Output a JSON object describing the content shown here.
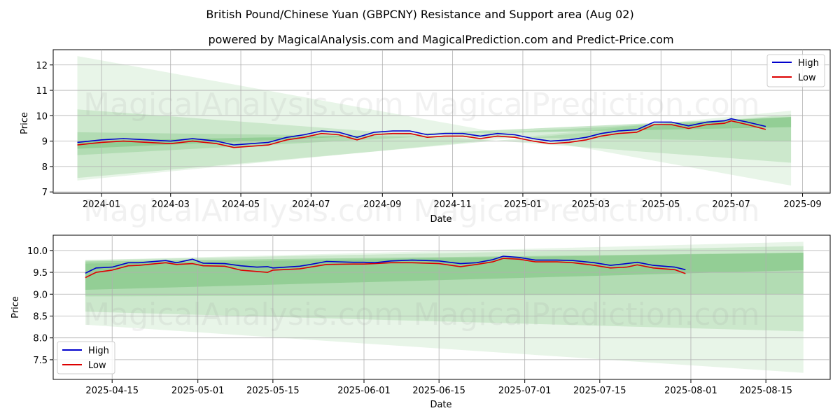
{
  "title": "British Pound/Chinese Yuan (GBPCNY) Resistance and Support area (Aug 02)",
  "subtitle": "powered by MagicalAnalysis.com and MagicalPrediction.com and Predict-Price.com",
  "watermark": [
    "MagicalAnalysis.com",
    "MagicalPrediction.com"
  ],
  "colors": {
    "high": "#0000cc",
    "low": "#dd0000",
    "band": "#4caf50"
  },
  "chart_data": [
    {
      "type": "line",
      "xlabel": "Date",
      "ylabel": "Price",
      "xlim": [
        "2023-11-20",
        "2025-09-25"
      ],
      "ylim": [
        6.95,
        12.6
      ],
      "xticks": [
        "2024-01",
        "2024-03",
        "2024-05",
        "2024-07",
        "2024-09",
        "2024-11",
        "2025-01",
        "2025-03",
        "2025-05",
        "2025-07",
        "2025-09"
      ],
      "yticks": [
        7,
        8,
        9,
        10,
        11,
        12
      ],
      "legend": [
        "High",
        "Low"
      ],
      "legend_position": "top-right",
      "grid": true,
      "bands": [
        {
          "start": "2023-12-11",
          "end": "2025-08-22",
          "from": [
            12.35,
            7.45
          ],
          "to": [
            7.25,
            10.2
          ],
          "alpha": 0.13
        },
        {
          "start": "2023-12-11",
          "end": "2025-08-22",
          "from": [
            10.25,
            7.55
          ],
          "to": [
            8.15,
            10.05
          ],
          "alpha": 0.18
        },
        {
          "start": "2023-12-11",
          "end": "2025-08-22",
          "from": [
            9.35,
            8.45
          ],
          "to": [
            9.0,
            9.95
          ],
          "alpha": 0.2
        },
        {
          "start": "2023-12-11",
          "end": "2025-08-22",
          "from": [
            9.0,
            8.7
          ],
          "to": [
            9.55,
            9.95
          ],
          "alpha": 0.3
        }
      ],
      "series": [
        {
          "name": "High",
          "x": [
            "2023-12-11",
            "2024-01-01",
            "2024-01-20",
            "2024-02-10",
            "2024-03-01",
            "2024-03-20",
            "2024-04-10",
            "2024-04-25",
            "2024-05-10",
            "2024-05-25",
            "2024-06-10",
            "2024-06-25",
            "2024-07-10",
            "2024-07-25",
            "2024-08-10",
            "2024-08-25",
            "2024-09-10",
            "2024-09-25",
            "2024-10-10",
            "2024-10-25",
            "2024-11-10",
            "2024-11-25",
            "2024-12-10",
            "2024-12-25",
            "2025-01-10",
            "2025-01-25",
            "2025-02-10",
            "2025-02-25",
            "2025-03-10",
            "2025-03-25",
            "2025-04-10",
            "2025-04-25",
            "2025-05-10",
            "2025-05-25",
            "2025-06-10",
            "2025-06-25",
            "2025-07-01",
            "2025-07-15",
            "2025-07-31"
          ],
          "values": [
            8.95,
            9.05,
            9.1,
            9.05,
            9.0,
            9.1,
            9.0,
            8.85,
            8.9,
            8.95,
            9.15,
            9.25,
            9.4,
            9.35,
            9.15,
            9.35,
            9.4,
            9.4,
            9.25,
            9.3,
            9.3,
            9.2,
            9.3,
            9.25,
            9.1,
            9.0,
            9.05,
            9.15,
            9.3,
            9.4,
            9.45,
            9.75,
            9.75,
            9.6,
            9.75,
            9.8,
            9.88,
            9.75,
            9.58
          ]
        },
        {
          "name": "Low",
          "x": [
            "2023-12-11",
            "2024-01-01",
            "2024-01-20",
            "2024-02-10",
            "2024-03-01",
            "2024-03-20",
            "2024-04-10",
            "2024-04-25",
            "2024-05-10",
            "2024-05-25",
            "2024-06-10",
            "2024-06-25",
            "2024-07-10",
            "2024-07-25",
            "2024-08-10",
            "2024-08-25",
            "2024-09-10",
            "2024-09-25",
            "2024-10-10",
            "2024-10-25",
            "2024-11-10",
            "2024-11-25",
            "2024-12-10",
            "2024-12-25",
            "2025-01-10",
            "2025-01-25",
            "2025-02-10",
            "2025-02-25",
            "2025-03-10",
            "2025-03-25",
            "2025-04-10",
            "2025-04-25",
            "2025-05-10",
            "2025-05-25",
            "2025-06-10",
            "2025-06-25",
            "2025-07-01",
            "2025-07-15",
            "2025-07-31"
          ],
          "values": [
            8.85,
            8.95,
            9.0,
            8.95,
            8.9,
            9.0,
            8.9,
            8.75,
            8.8,
            8.85,
            9.05,
            9.15,
            9.3,
            9.25,
            9.05,
            9.25,
            9.3,
            9.3,
            9.15,
            9.2,
            9.2,
            9.1,
            9.2,
            9.15,
            9.0,
            8.9,
            8.95,
            9.05,
            9.2,
            9.3,
            9.35,
            9.65,
            9.65,
            9.5,
            9.65,
            9.7,
            9.8,
            9.65,
            9.46
          ]
        }
      ]
    },
    {
      "type": "line",
      "xlabel": "Date",
      "ylabel": "Price",
      "xlim": [
        "2025-04-04",
        "2025-08-27"
      ],
      "ylim": [
        7.05,
        10.35
      ],
      "xticks": [
        "2025-04-15",
        "2025-05-01",
        "2025-05-15",
        "2025-06-01",
        "2025-06-15",
        "2025-07-01",
        "2025-07-15",
        "2025-08-01",
        "2025-08-15"
      ],
      "yticks": [
        7.5,
        8.0,
        8.5,
        9.0,
        9.5,
        10.0
      ],
      "legend": [
        "High",
        "Low"
      ],
      "legend_position": "bottom-left",
      "grid": true,
      "bands": [
        {
          "start": "2025-04-10",
          "end": "2025-08-22",
          "from": [
            9.78,
            8.3
          ],
          "to": [
            10.2,
            7.2
          ],
          "alpha": 0.13
        },
        {
          "start": "2025-04-10",
          "end": "2025-08-22",
          "from": [
            9.78,
            8.6
          ],
          "to": [
            10.1,
            8.15
          ],
          "alpha": 0.18
        },
        {
          "start": "2025-04-10",
          "end": "2025-08-22",
          "from": [
            9.7,
            8.95
          ],
          "to": [
            9.95,
            9.0
          ],
          "alpha": 0.2
        },
        {
          "start": "2025-04-10",
          "end": "2025-08-22",
          "from": [
            9.75,
            9.1
          ],
          "to": [
            9.95,
            9.55
          ],
          "alpha": 0.3
        }
      ],
      "series": [
        {
          "name": "High",
          "x": [
            "2025-04-10",
            "2025-04-12",
            "2025-04-15",
            "2025-04-18",
            "2025-04-20",
            "2025-04-25",
            "2025-04-27",
            "2025-04-30",
            "2025-05-02",
            "2025-05-06",
            "2025-05-09",
            "2025-05-12",
            "2025-05-14",
            "2025-05-15",
            "2025-05-20",
            "2025-05-22",
            "2025-05-25",
            "2025-05-30",
            "2025-06-01",
            "2025-06-03",
            "2025-06-06",
            "2025-06-10",
            "2025-06-15",
            "2025-06-19",
            "2025-06-22",
            "2025-06-25",
            "2025-06-27",
            "2025-06-30",
            "2025-07-03",
            "2025-07-07",
            "2025-07-10",
            "2025-07-14",
            "2025-07-16",
            "2025-07-17",
            "2025-07-20",
            "2025-07-22",
            "2025-07-25",
            "2025-07-29",
            "2025-07-31"
          ],
          "values": [
            9.48,
            9.6,
            9.62,
            9.72,
            9.72,
            9.77,
            9.72,
            9.8,
            9.71,
            9.7,
            9.65,
            9.62,
            9.63,
            9.6,
            9.64,
            9.68,
            9.75,
            9.73,
            9.73,
            9.72,
            9.76,
            9.78,
            9.76,
            9.7,
            9.72,
            9.79,
            9.87,
            9.84,
            9.78,
            9.78,
            9.77,
            9.72,
            9.68,
            9.66,
            9.7,
            9.73,
            9.66,
            9.62,
            9.56
          ]
        },
        {
          "name": "Low",
          "x": [
            "2025-04-10",
            "2025-04-12",
            "2025-04-15",
            "2025-04-18",
            "2025-04-20",
            "2025-04-25",
            "2025-04-27",
            "2025-04-30",
            "2025-05-02",
            "2025-05-06",
            "2025-05-09",
            "2025-05-12",
            "2025-05-14",
            "2025-05-15",
            "2025-05-20",
            "2025-05-22",
            "2025-05-25",
            "2025-05-30",
            "2025-06-01",
            "2025-06-03",
            "2025-06-06",
            "2025-06-10",
            "2025-06-15",
            "2025-06-19",
            "2025-06-22",
            "2025-06-25",
            "2025-06-27",
            "2025-06-30",
            "2025-07-03",
            "2025-07-07",
            "2025-07-10",
            "2025-07-14",
            "2025-07-16",
            "2025-07-17",
            "2025-07-20",
            "2025-07-22",
            "2025-07-25",
            "2025-07-29",
            "2025-07-31"
          ],
          "values": [
            9.38,
            9.5,
            9.55,
            9.65,
            9.66,
            9.72,
            9.68,
            9.7,
            9.65,
            9.64,
            9.55,
            9.52,
            9.5,
            9.55,
            9.58,
            9.62,
            9.68,
            9.69,
            9.69,
            9.7,
            9.72,
            9.72,
            9.7,
            9.63,
            9.68,
            9.74,
            9.82,
            9.8,
            9.74,
            9.74,
            9.72,
            9.66,
            9.62,
            9.6,
            9.62,
            9.67,
            9.6,
            9.56,
            9.47
          ]
        }
      ]
    }
  ]
}
